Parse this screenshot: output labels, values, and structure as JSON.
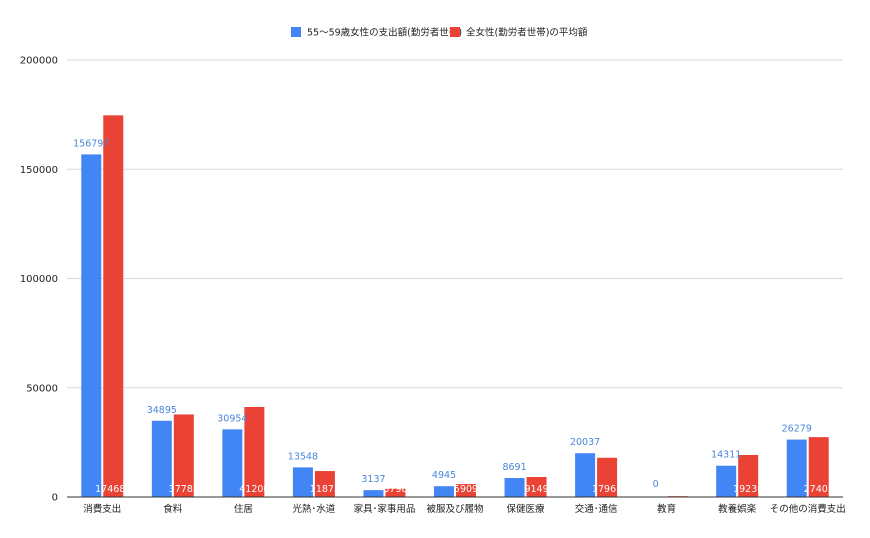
{
  "chart_data": {
    "type": "bar",
    "categories": [
      "消費支出",
      "食料",
      "住居",
      "光熱･水道",
      "家具･家事用品",
      "被服及び履物",
      "保健医療",
      "交通･通信",
      "教育",
      "教養娯楽",
      "その他の消費支出"
    ],
    "series": [
      {
        "name": "55～59歳女性の支出額(勤労者世帯)",
        "color": "#4285f4",
        "label_color": "#4a86d9",
        "values": [
          156797,
          34895,
          30954,
          13548,
          3137,
          4945,
          8691,
          20037,
          0,
          14311,
          26279
        ]
      },
      {
        "name": "全女性(勤労者世帯)の平均額",
        "color": "#ea4335",
        "label_color": "#ffffff",
        "values": [
          174681,
          37785,
          41200,
          11875,
          3798,
          5909,
          9149,
          17961,
          372,
          19230,
          27402
        ]
      }
    ],
    "ylim": [
      0,
      200000
    ],
    "yticks": [
      0,
      50000,
      100000,
      150000,
      200000
    ],
    "grid": true,
    "legend_position": "top-center",
    "xlabel": "",
    "ylabel": "",
    "title": ""
  }
}
